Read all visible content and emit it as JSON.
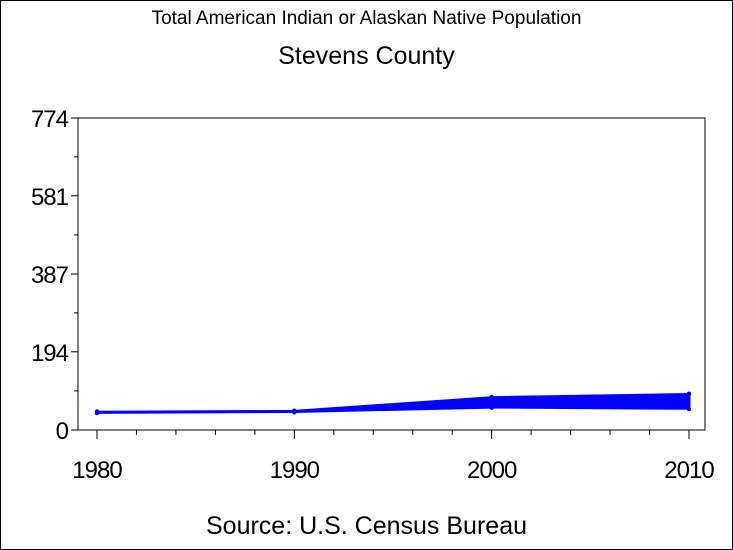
{
  "chart_data": {
    "type": "area",
    "title": "Total American Indian or Alaskan Native Population",
    "subtitle": "Stevens County",
    "source": "Source: U.S. Census Bureau",
    "xlabel": "",
    "ylabel": "",
    "x_ticks": [
      "1980",
      "1990",
      "2000",
      "2010"
    ],
    "y_ticks": [
      "0",
      "194",
      "387",
      "581",
      "774"
    ],
    "ylim": [
      0,
      774
    ],
    "xlim": [
      1980,
      2010
    ],
    "series_color": "#0000ff",
    "points": [
      {
        "x": 1980,
        "low": 42,
        "high": 46
      },
      {
        "x": 1990,
        "low": 44,
        "high": 48
      },
      {
        "x": 2000,
        "low": 55,
        "high": 82
      },
      {
        "x": 2010,
        "low": 52,
        "high": 90
      }
    ],
    "grid": false,
    "legend": "none"
  }
}
